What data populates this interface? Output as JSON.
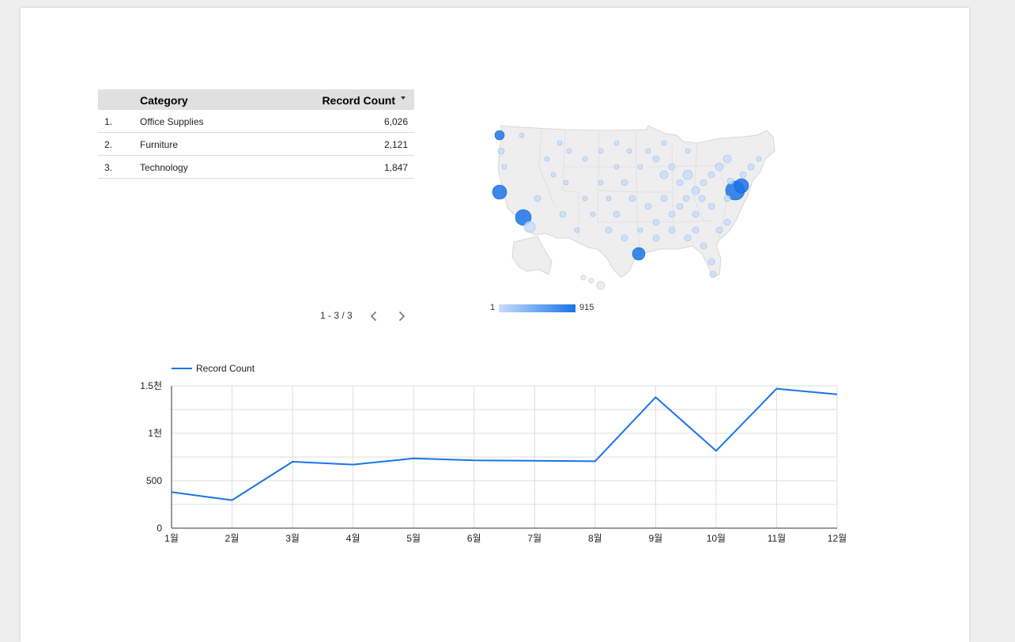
{
  "table": {
    "headers": {
      "category": "Category",
      "count": "Record Count"
    },
    "rows": [
      {
        "index": "1.",
        "category": "Office Supplies",
        "value": "6,026"
      },
      {
        "index": "2.",
        "category": "Furniture",
        "value": "2,121"
      },
      {
        "index": "3.",
        "category": "Technology",
        "value": "1,847"
      }
    ],
    "pagination": "1 - 3 / 3"
  },
  "map": {
    "legend_min": "1",
    "legend_max": "915",
    "colors": {
      "low": "#c6dcfb",
      "high": "#1a73e8",
      "land": "#eeeeee",
      "border": "#dcdcdc"
    }
  },
  "chart_data": {
    "type": "line",
    "categories": [
      "1월",
      "2월",
      "3월",
      "4월",
      "5월",
      "6월",
      "7월",
      "8월",
      "9월",
      "10월",
      "11월",
      "12월"
    ],
    "series": [
      {
        "name": "Record Count",
        "values": [
          380,
          295,
          700,
          670,
          735,
          715,
          710,
          705,
          1380,
          815,
          1470,
          1410
        ],
        "color": "#1a73e8"
      }
    ],
    "ylim": [
      0,
      1500
    ],
    "yticks": [
      {
        "value": 0,
        "label": "0"
      },
      {
        "value": 500,
        "label": "500"
      },
      {
        "value": 1000,
        "label": "1천"
      },
      {
        "value": 1500,
        "label": "1.5천"
      }
    ],
    "grid": true,
    "legend": "top-left"
  },
  "icons": {
    "sort": "sort-desc-icon",
    "prev": "chevron-left-icon",
    "next": "chevron-right-icon"
  }
}
